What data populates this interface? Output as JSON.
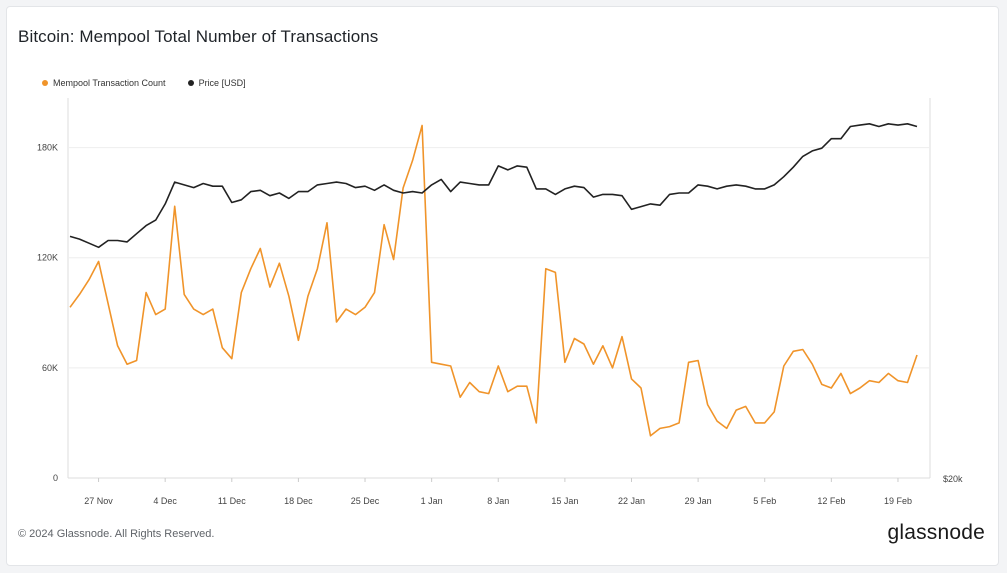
{
  "footer": {
    "copyright": "© 2024 Glassnode. All Rights Reserved.",
    "brand": "glassnode"
  },
  "colors": {
    "orange": "#f0942a",
    "black": "#222222",
    "grid": "#eeeeee"
  },
  "chart_data": {
    "type": "line",
    "title": "Bitcoin: Mempool Total Number of Transactions",
    "legend": [
      "Mempool Transaction Count",
      "Price [USD]"
    ],
    "legend_position": "top-left",
    "grid": true,
    "x_tick_labels": [
      "27 Nov",
      "4 Dec",
      "11 Dec",
      "18 Dec",
      "25 Dec",
      "1 Jan",
      "8 Jan",
      "15 Jan",
      "22 Jan",
      "29 Jan",
      "5 Feb",
      "12 Feb",
      "19 Feb"
    ],
    "x_start": "2023-11-24",
    "y_left": {
      "ticks": [
        0,
        60000,
        120000,
        180000
      ],
      "tick_labels": [
        "0",
        "60K",
        "120K",
        "180K"
      ],
      "lim": [
        0,
        207000
      ]
    },
    "y_right": {
      "tick_labels": [
        "$20k"
      ]
    },
    "series": [
      {
        "name": "Mempool Transaction Count",
        "color": "#f0942a",
        "values": [
          93000,
          100000,
          108000,
          118000,
          95000,
          72000,
          62000,
          64000,
          101000,
          89000,
          92000,
          148000,
          100000,
          92000,
          89000,
          92000,
          71000,
          65000,
          101000,
          114000,
          125000,
          104000,
          117000,
          99000,
          75000,
          99000,
          114000,
          139000,
          85000,
          92000,
          89000,
          93000,
          101000,
          138000,
          119000,
          158000,
          173000,
          192000,
          63000,
          62000,
          61000,
          44000,
          52000,
          47000,
          46000,
          61000,
          47000,
          50000,
          50000,
          30000,
          114000,
          112000,
          63000,
          76000,
          73000,
          62000,
          72000,
          60000,
          77000,
          54000,
          49000,
          23000,
          27000,
          28000,
          30000,
          63000,
          64000,
          40000,
          31000,
          27000,
          37000,
          39000,
          30000,
          30000,
          36000,
          61000,
          69000,
          70000,
          62000,
          51000,
          49000,
          57000,
          46000,
          49000,
          53000,
          52000,
          57000,
          53000,
          52000,
          67000
        ]
      },
      {
        "name": "Price [USD]",
        "color": "#222222",
        "values": [
          37800,
          37600,
          37300,
          37000,
          37500,
          37500,
          37400,
          38000,
          38600,
          39000,
          40200,
          41800,
          41600,
          41400,
          41700,
          41500,
          41500,
          40300,
          40500,
          41100,
          41200,
          40800,
          41000,
          40600,
          41100,
          41100,
          41600,
          41700,
          41800,
          41700,
          41400,
          41500,
          41200,
          41600,
          41200,
          41000,
          41100,
          41000,
          41600,
          42000,
          41100,
          41800,
          41700,
          41600,
          41600,
          43000,
          42700,
          43000,
          42900,
          41300,
          41300,
          40900,
          41300,
          41500,
          41400,
          40700,
          40900,
          40900,
          40800,
          39800,
          40000,
          40200,
          40100,
          40900,
          41000,
          41000,
          41600,
          41500,
          41300,
          41500,
          41600,
          41500,
          41300,
          41300,
          41600,
          42200,
          42900,
          43700,
          44100,
          44300,
          45000,
          45000,
          45900,
          46000,
          46100,
          45900,
          46100,
          46000,
          46100,
          45900
        ]
      }
    ]
  }
}
